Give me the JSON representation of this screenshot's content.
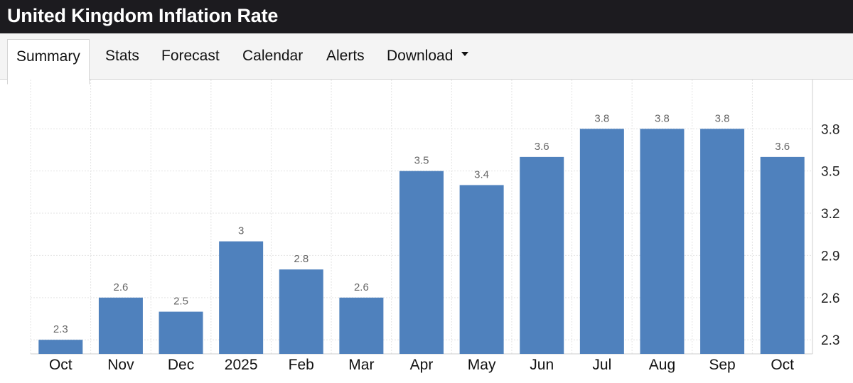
{
  "header": {
    "title": "United Kingdom Inflation Rate"
  },
  "tabs": [
    {
      "label": "Summary",
      "active": true
    },
    {
      "label": "Stats"
    },
    {
      "label": "Forecast"
    },
    {
      "label": "Calendar"
    },
    {
      "label": "Alerts"
    },
    {
      "label": "Download",
      "has_dropdown": true
    }
  ],
  "chart_data": {
    "type": "bar",
    "categories": [
      "Oct",
      "Nov",
      "Dec",
      "2025",
      "Feb",
      "Mar",
      "Apr",
      "May",
      "Jun",
      "Jul",
      "Aug",
      "Sep",
      "Oct"
    ],
    "values": [
      2.3,
      2.6,
      2.5,
      3,
      2.8,
      2.6,
      3.5,
      3.4,
      3.6,
      3.8,
      3.8,
      3.8,
      3.6
    ],
    "value_labels": [
      "2.3",
      "2.6",
      "2.5",
      "3",
      "2.8",
      "2.6",
      "3.5",
      "3.4",
      "3.6",
      "3.8",
      "3.8",
      "3.8",
      "3.6"
    ],
    "y_ticks": [
      "2.3",
      "2.6",
      "2.9",
      "3.2",
      "3.5",
      "3.8"
    ],
    "ylim": [
      2.2,
      4.15
    ],
    "y_axis_position": "right",
    "grid": true,
    "bar_color": "#4f81bd"
  }
}
